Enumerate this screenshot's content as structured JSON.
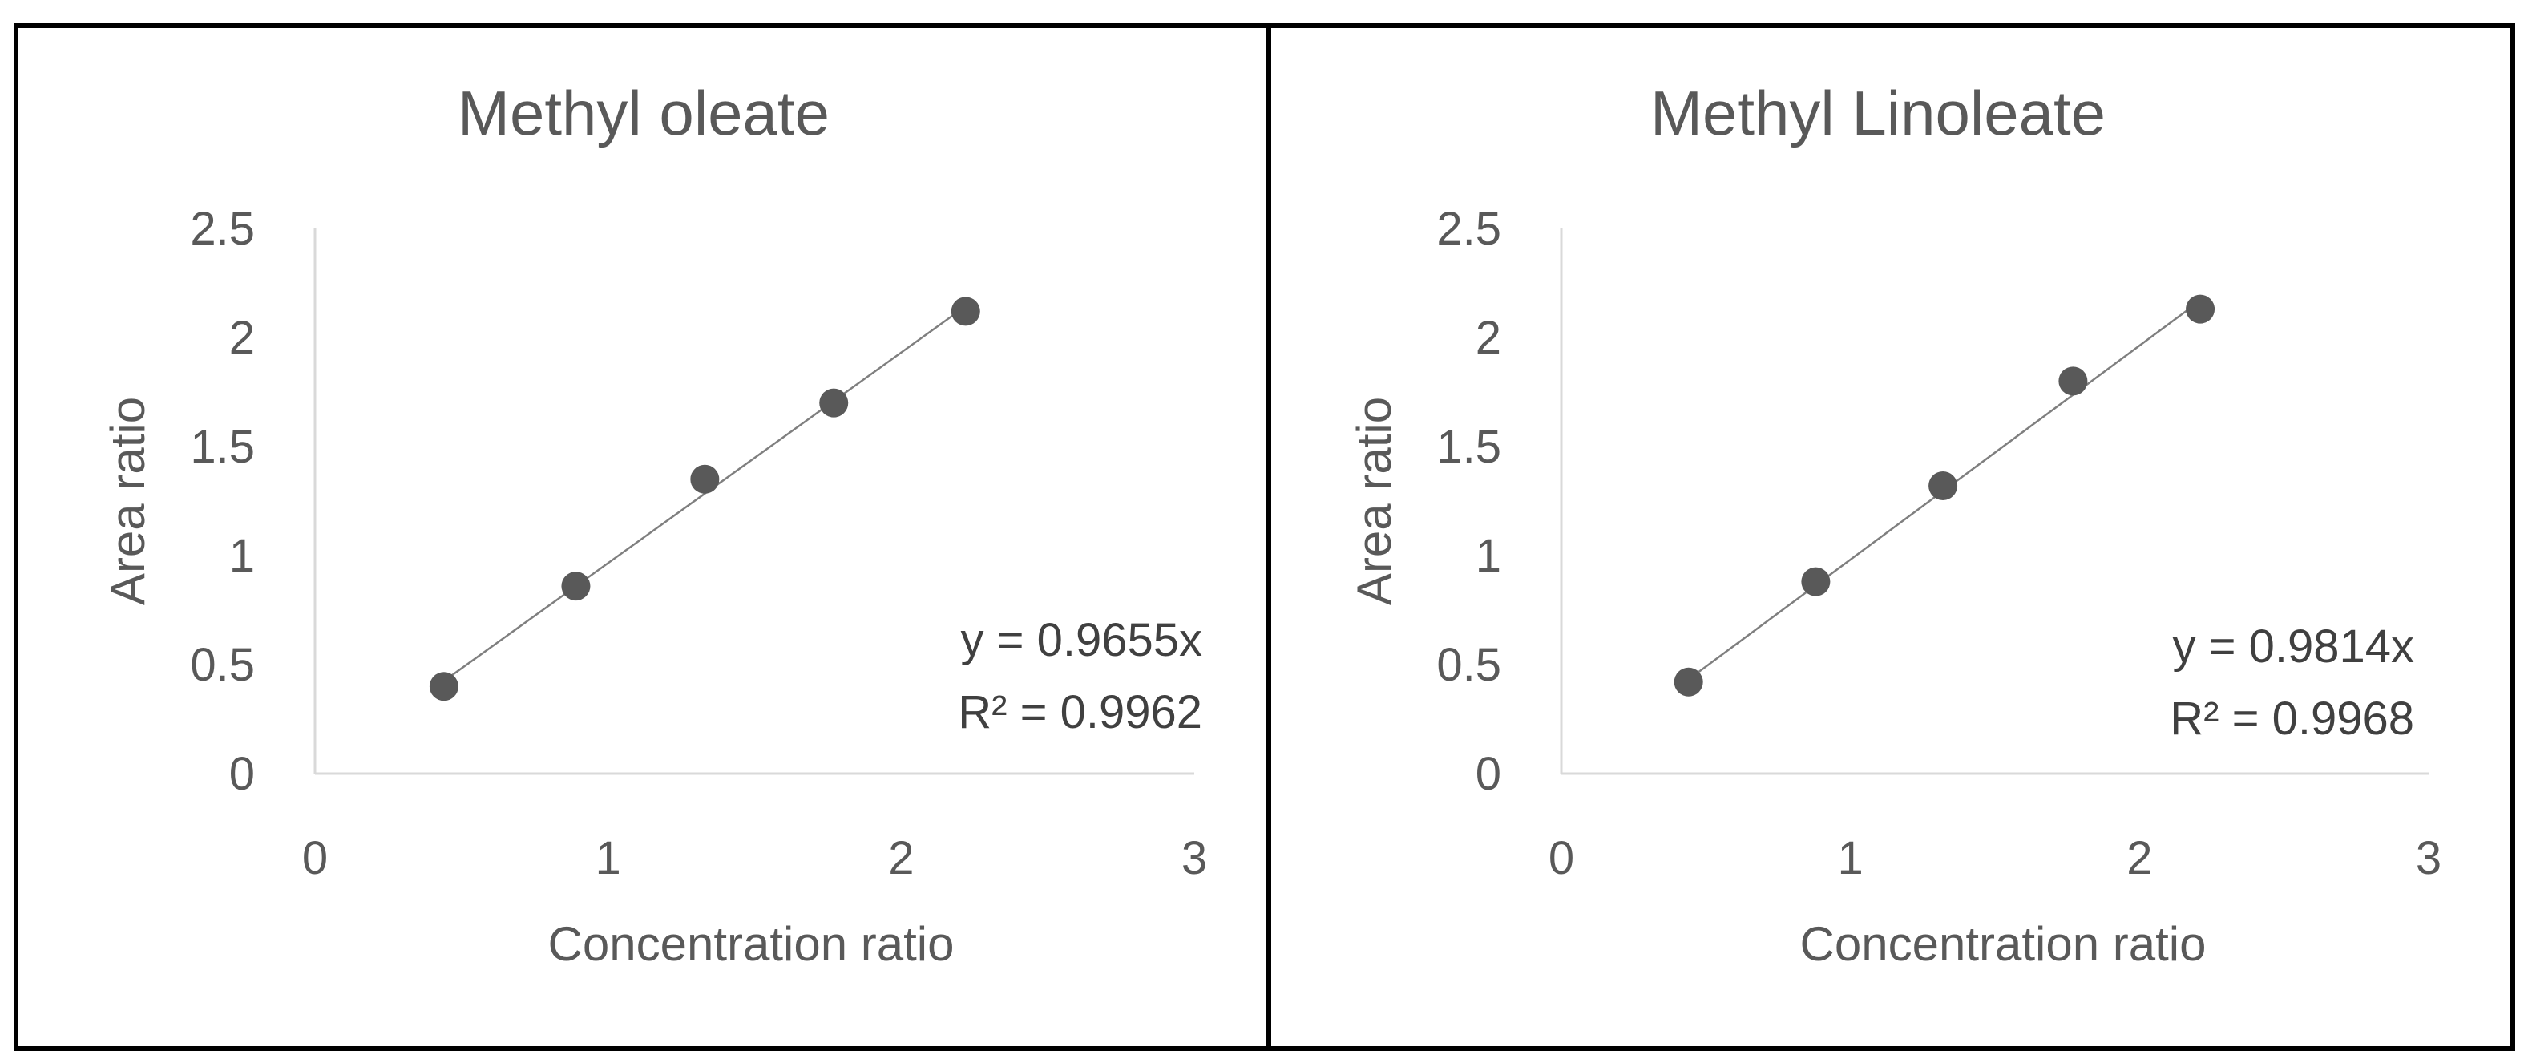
{
  "chart_data": [
    {
      "type": "scatter",
      "title": "Methyl oleate",
      "xlabel": "Concentration ratio",
      "ylabel": "Area ratio",
      "xlim": [
        0,
        3
      ],
      "ylim": [
        0,
        2.5
      ],
      "x_ticks": [
        "0",
        "1",
        "2",
        "3"
      ],
      "y_ticks": [
        "0",
        "0.5",
        "1",
        "1.5",
        "2",
        "2.5"
      ],
      "grid": false,
      "series": [
        {
          "x": [
            0.44,
            0.89,
            1.33,
            1.77,
            2.22
          ],
          "y": [
            0.4,
            0.86,
            1.35,
            1.7,
            2.12
          ],
          "color": "#595959"
        }
      ],
      "trendline": {
        "slope": 0.9655,
        "x_range": [
          0.44,
          2.22
        ],
        "equation": "y = 0.9655x",
        "r_squared": "R² = 0.9962"
      }
    },
    {
      "type": "scatter",
      "title": "Methyl Linoleate",
      "xlabel": "Concentration ratio",
      "ylabel": "Area ratio",
      "xlim": [
        0,
        3
      ],
      "ylim": [
        0,
        2.5
      ],
      "x_ticks": [
        "0",
        "1",
        "2",
        "3"
      ],
      "y_ticks": [
        "0",
        "0.5",
        "1",
        "1.5",
        "2",
        "2.5"
      ],
      "grid": false,
      "series": [
        {
          "x": [
            0.44,
            0.88,
            1.32,
            1.77,
            2.21
          ],
          "y": [
            0.42,
            0.88,
            1.32,
            1.8,
            2.13
          ],
          "color": "#595959"
        }
      ],
      "trendline": {
        "slope": 0.9814,
        "x_range": [
          0.44,
          2.21
        ],
        "equation": "y = 0.9814x",
        "r_squared": "R² = 0.9968"
      }
    }
  ]
}
